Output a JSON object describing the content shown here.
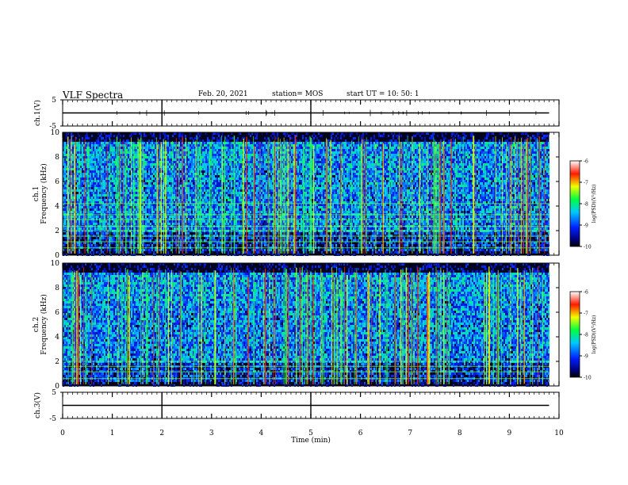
{
  "header": {
    "title": "VLF Spectra",
    "date": "Feb. 20, 2021",
    "station": "station= MOS",
    "start_ut": "start  UT =   10: 50: 1"
  },
  "chart_data": [
    {
      "type": "line",
      "panel": "ch1-waveform",
      "ylabel": "ch.1(V)",
      "ylim": [
        -5,
        5
      ],
      "yticks": [
        5,
        -5
      ],
      "xlim": [
        0,
        10
      ],
      "series": [
        {
          "x": [
            0,
            9.8
          ],
          "values": [
            0,
            0
          ]
        }
      ],
      "trace_color": "#000000"
    },
    {
      "type": "heatmap",
      "panel": "ch1-spectrogram",
      "ylabel": "ch.1\nFrequency (kHz)",
      "ylabel_lines": [
        "ch.1",
        "Frequency (kHz)"
      ],
      "ylim": [
        0,
        10
      ],
      "yticks": [
        0,
        2,
        4,
        6,
        8,
        10
      ],
      "xlim": [
        0,
        10
      ],
      "data_xmax": 9.8,
      "colorbar": {
        "label": "log(PSD)(V²/Hz)",
        "range": [
          -10,
          -6
        ],
        "ticks": [
          "-6",
          "-7",
          "-8",
          "-9",
          "-10"
        ]
      },
      "narrowband_lines_khz": [
        0.6,
        1.1,
        1.55,
        2.0,
        2.35,
        2.9,
        3.3,
        4.2
      ]
    },
    {
      "type": "heatmap",
      "panel": "ch2-spectrogram",
      "ylabel": "ch.2\nFrequency (kHz)",
      "ylabel_lines": [
        "ch.2",
        "Frequency (kHz)"
      ],
      "ylim": [
        0,
        10
      ],
      "yticks": [
        0,
        2,
        4,
        6,
        8,
        10
      ],
      "xlim": [
        0,
        10
      ],
      "data_xmax": 9.8,
      "colorbar": {
        "label": "log(PSD)(V²/Hz)",
        "range": [
          -10,
          -6
        ],
        "ticks": [
          "-6",
          "-7",
          "-8",
          "-9",
          "-10"
        ]
      },
      "narrowband_lines_khz": [
        0.6,
        1.15,
        1.6,
        2.0
      ]
    },
    {
      "type": "line",
      "panel": "ch3-waveform",
      "ylabel": "ch.3(V)",
      "ylim": [
        -5,
        5
      ],
      "yticks": [
        5,
        -5
      ],
      "xlim": [
        0,
        10
      ],
      "xticks": [
        0,
        1,
        2,
        3,
        4,
        5,
        6,
        7,
        8,
        9,
        10
      ],
      "xlabel": "Time  (min)",
      "series": [
        {
          "x": [
            0,
            9.8
          ],
          "values": [
            0,
            0
          ]
        }
      ],
      "trace_color": "#000000"
    }
  ]
}
